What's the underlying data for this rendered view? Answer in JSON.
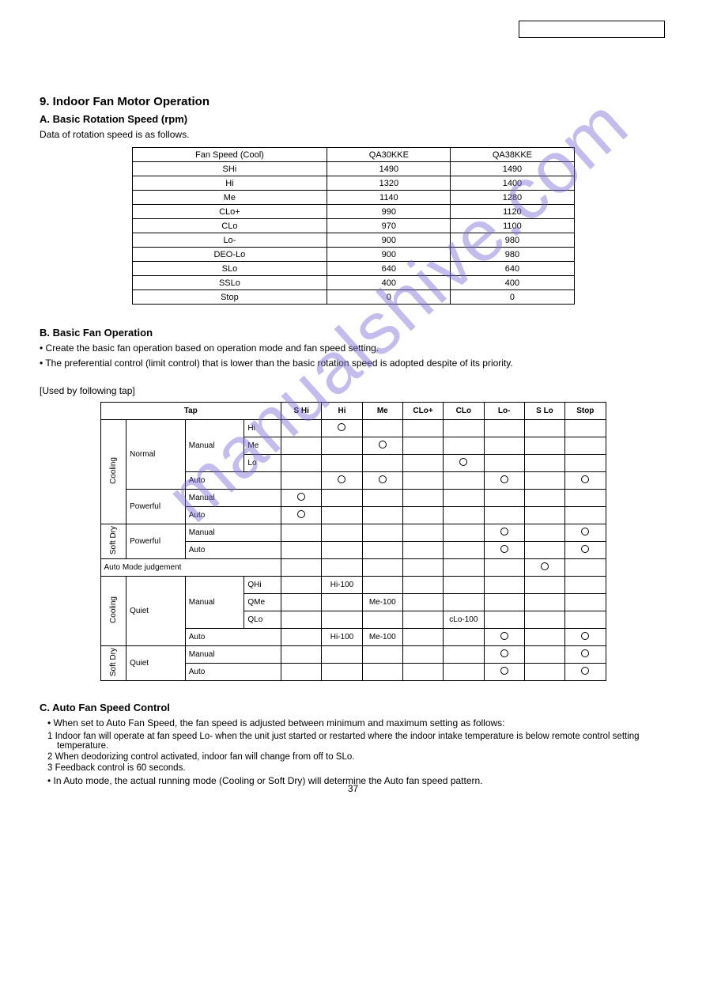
{
  "top_box": "",
  "watermark": "manualshive.com",
  "page_number": "37",
  "section9": {
    "title": "9. Indoor Fan Motor Operation",
    "sub_a_title": "A. Basic Rotation Speed (rpm)",
    "sub_a_text": "Data of rotation speed is as follows.",
    "spec_table": {
      "columns": [
        "Fan Speed (Cool)",
        "QA30KKE",
        "QA38KKE"
      ],
      "rows": [
        [
          "SHi",
          "1490",
          "1490"
        ],
        [
          "Hi",
          "1320",
          "1400"
        ],
        [
          "Me",
          "1140",
          "1280"
        ],
        [
          "CLo+",
          "990",
          "1120"
        ],
        [
          "CLo",
          "970",
          "1100"
        ],
        [
          "Lo-",
          "900",
          "980"
        ],
        [
          "DEO-Lo",
          "900",
          "980"
        ],
        [
          "SLo",
          "640",
          "640"
        ],
        [
          "SSLo",
          "400",
          "400"
        ],
        [
          "Stop",
          "0",
          "0"
        ]
      ]
    },
    "sub_b_title": "B. Basic Fan Operation",
    "sub_b_p1": "• Create the basic fan operation based on operation mode and fan speed setting.",
    "sub_b_p2": "• The preferential control (limit control) that is lower than the basic rotation speed is adopted despite of its priority.",
    "used_label": "[Used by following tap]",
    "fan_table": {
      "header_cols": [
        "S Hi",
        "Hi",
        "Me",
        "CLo+",
        "CLo",
        "Lo-",
        "S Lo",
        "Stop"
      ],
      "rows": [
        {
          "g1": "Cooling",
          "g2": "Normal",
          "g3": "Manual",
          "g4": "Hi",
          "cells": [
            "",
            "O",
            "",
            "",
            "",
            "",
            "",
            ""
          ]
        },
        {
          "g4": "Me",
          "cells": [
            "",
            "",
            "O",
            "",
            "",
            "",
            "",
            ""
          ]
        },
        {
          "g4": "Lo",
          "cells": [
            "",
            "",
            "",
            "",
            "O",
            "",
            "",
            ""
          ]
        },
        {
          "g3": "Auto",
          "cells": [
            "",
            "O",
            "O",
            "",
            "",
            "O",
            "",
            "O"
          ]
        },
        {
          "g2": "Powerful",
          "g3": "Manual",
          "cells": [
            "O",
            "",
            "",
            "",
            "",
            "",
            "",
            ""
          ]
        },
        {
          "g3": "Auto",
          "cells": [
            "O",
            "",
            "",
            "",
            "",
            "",
            "",
            ""
          ]
        },
        {
          "g1": "Soft Dry",
          "g2": "Powerful",
          "g3": "Manual",
          "cells": [
            "",
            "",
            "",
            "",
            "",
            "O",
            "",
            "O"
          ]
        },
        {
          "g3": "Auto",
          "cells": [
            "",
            "",
            "",
            "",
            "",
            "O",
            "",
            "O"
          ]
        },
        {
          "amj": "Auto Mode judgement",
          "cells": [
            "",
            "",
            "",
            "",
            "",
            "",
            "O",
            ""
          ]
        },
        {
          "g1": "Cooling",
          "g2": "Quiet",
          "g3": "Manual",
          "g4": "QHi",
          "cells": [
            "",
            "Hi-100",
            "",
            "",
            "",
            "",
            "",
            ""
          ]
        },
        {
          "g4": "QMe",
          "cells": [
            "",
            "",
            "Me-100",
            "",
            "",
            "",
            "",
            ""
          ]
        },
        {
          "g4": "QLo",
          "cells": [
            "",
            "",
            "",
            "",
            "cLo-100",
            "",
            "",
            ""
          ]
        },
        {
          "g3": "Auto",
          "cells": [
            "",
            "Hi-100",
            "Me-100",
            "",
            "",
            "O",
            "",
            "O"
          ]
        },
        {
          "g1": "Soft Dry",
          "g2": "Quiet",
          "g3": "Manual",
          "cells": [
            "",
            "",
            "",
            "",
            "",
            "O",
            "",
            "O"
          ]
        },
        {
          "g3": "Auto",
          "cells": [
            "",
            "",
            "",
            "",
            "",
            "O",
            "",
            "O"
          ]
        }
      ]
    },
    "auto_title": "C. Auto Fan Speed Control",
    "auto_p1": "• When set to Auto Fan Speed, the fan speed is adjusted between minimum and maximum setting as follows:",
    "auto_bullets": [
      "1 Indoor fan will operate at fan speed Lo- when the unit just started or restarted where the indoor intake temperature is below remote control setting temperature.",
      "2 When deodorizing control activated, indoor fan will change from off to SLo.",
      "3 Feedback control is 60 seconds."
    ],
    "auto_note": "• In Auto mode, the actual running mode (Cooling or Soft Dry) will determine the Auto fan speed pattern."
  }
}
